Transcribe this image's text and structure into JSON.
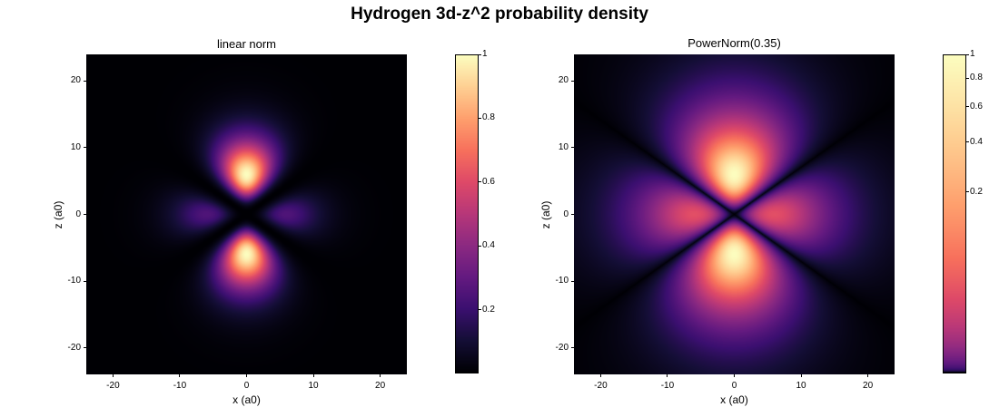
{
  "figure_title": "Hydrogen 3d-z^2 probability density",
  "chart_data": [
    {
      "type": "heatmap",
      "title": "linear norm",
      "xlabel": "x (a0)",
      "ylabel": "z (a0)",
      "xlim": [
        -24,
        24
      ],
      "ylim": [
        -24,
        24
      ],
      "xticks": [
        -20,
        -10,
        0,
        10,
        20
      ],
      "yticks": [
        -20,
        -10,
        0,
        10,
        20
      ],
      "function": "|psi_3d_z2|^2 proportional to r^4 exp(-2r/3) (3cos^2(theta) - 1)^2",
      "colormap": "magma",
      "norm": "linear",
      "colorbar": {
        "range": [
          0,
          1
        ],
        "ticks": [
          0.2,
          0.4,
          0.6,
          0.8,
          1
        ],
        "tick_labels": [
          "0.2",
          "0.4",
          "0.6",
          "0.8",
          "1"
        ]
      }
    },
    {
      "type": "heatmap",
      "title": "PowerNorm(0.35)",
      "xlabel": "x (a0)",
      "ylabel": "z (a0)",
      "xlim": [
        -24,
        24
      ],
      "ylim": [
        -24,
        24
      ],
      "xticks": [
        -20,
        -10,
        0,
        10,
        20
      ],
      "yticks": [
        -20,
        -10,
        0,
        10,
        20
      ],
      "function": "|psi_3d_z2|^2 proportional to r^4 exp(-2r/3) (3cos^2(theta) - 1)^2",
      "colormap": "magma",
      "norm": "power",
      "gamma": 0.35,
      "colorbar": {
        "range": [
          0,
          1
        ],
        "ticks": [
          0.2,
          0.4,
          0.6,
          0.8,
          1
        ],
        "tick_labels": [
          "0.2",
          "0.4",
          "0.6",
          "0.8",
          "1"
        ]
      }
    }
  ]
}
